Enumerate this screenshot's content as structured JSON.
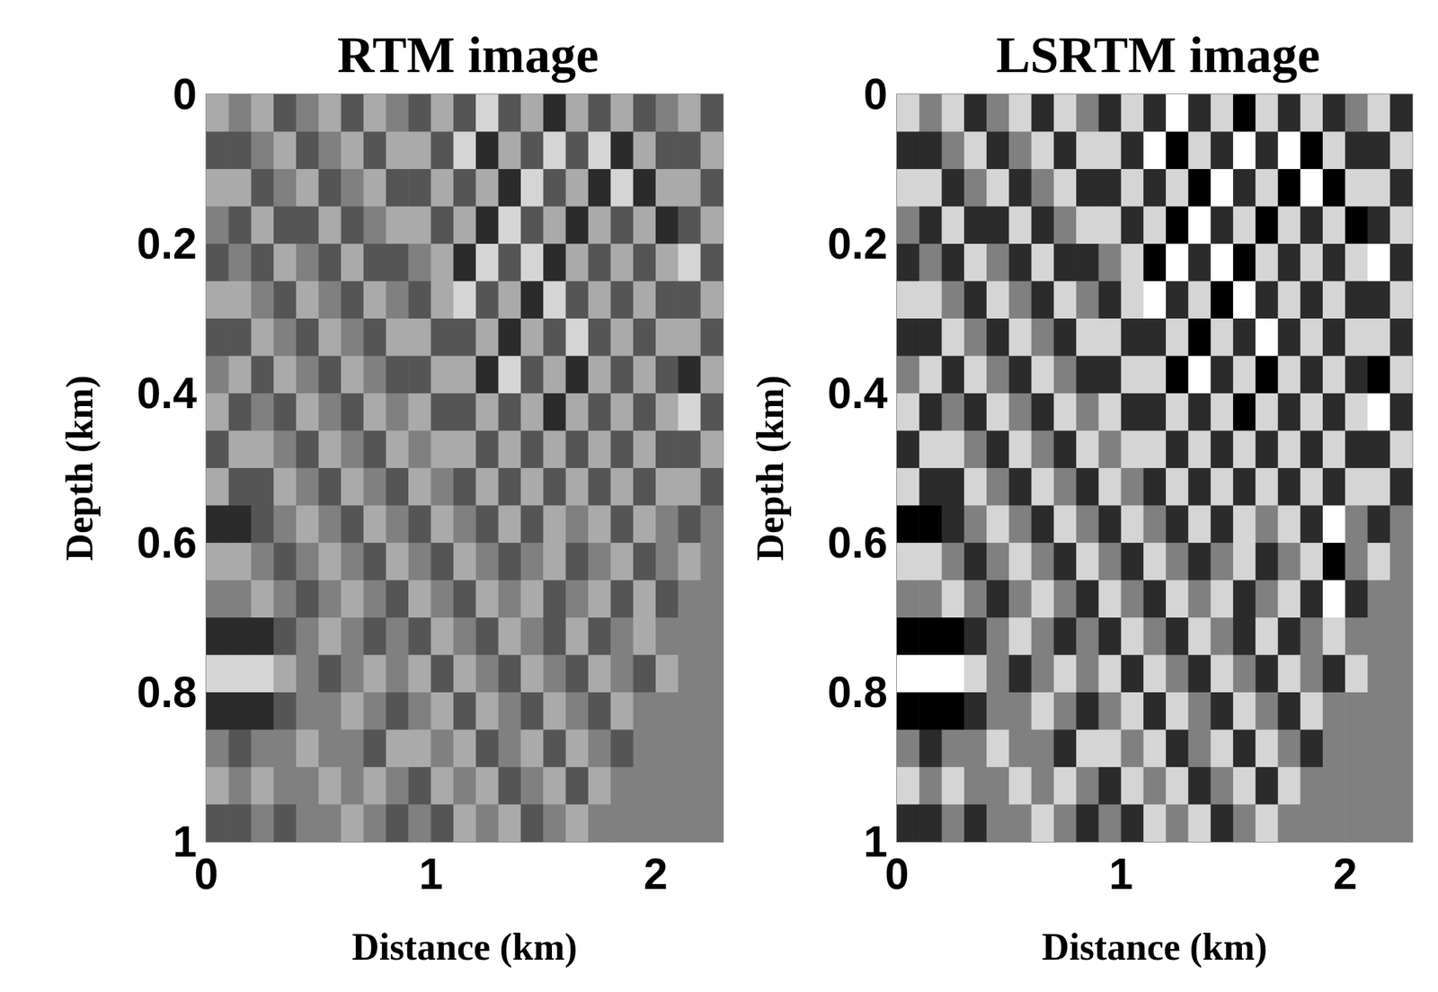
{
  "chart_data": [
    {
      "type": "heatmap",
      "title": "RTM image",
      "x_label": "Distance (km)",
      "y_label": "Depth (km)",
      "xlim": [
        0,
        2.3
      ],
      "xticks": [
        0,
        1,
        2
      ],
      "ylim": [
        0,
        1
      ],
      "yticks": [
        0,
        0.2,
        0.4,
        0.6,
        0.8,
        1
      ],
      "color_range": [
        -3,
        3
      ],
      "x": [
        0.05,
        0.15,
        0.25,
        0.35,
        0.45,
        0.55,
        0.65,
        0.75,
        0.85,
        0.95,
        1.05,
        1.15,
        1.25,
        1.35,
        1.45,
        1.55,
        1.65,
        1.75,
        1.85,
        1.95,
        2.05,
        2.15,
        2.25
      ],
      "y": [
        0.025,
        0.075,
        0.125,
        0.175,
        0.225,
        0.275,
        0.325,
        0.375,
        0.425,
        0.475,
        0.525,
        0.575,
        0.625,
        0.675,
        0.725,
        0.775,
        0.825,
        0.875,
        0.925,
        0.975
      ],
      "cells": [
        [
          1,
          0,
          1,
          -1,
          0,
          1,
          -1,
          1,
          0,
          -1,
          1,
          -1,
          2,
          -1,
          1,
          -2,
          1,
          -1,
          1,
          -1,
          0,
          1,
          -1
        ],
        [
          -1,
          -1,
          0,
          1,
          -1,
          0,
          1,
          -1,
          1,
          1,
          -1,
          2,
          -2,
          1,
          -1,
          2,
          -1,
          2,
          -2,
          1,
          -1,
          -1,
          1
        ],
        [
          1,
          1,
          -1,
          0,
          1,
          -1,
          0,
          1,
          -1,
          -1,
          1,
          -1,
          1,
          -2,
          2,
          -1,
          1,
          -2,
          2,
          -2,
          1,
          1,
          -1
        ],
        [
          0,
          -1,
          1,
          -1,
          -1,
          1,
          -1,
          0,
          1,
          1,
          -1,
          1,
          -2,
          2,
          -1,
          1,
          -2,
          1,
          -1,
          1,
          -2,
          -1,
          1
        ],
        [
          -1,
          0,
          -1,
          1,
          0,
          -1,
          1,
          -1,
          -1,
          0,
          1,
          -2,
          2,
          -1,
          2,
          -2,
          1,
          -1,
          1,
          -1,
          1,
          2,
          -1
        ],
        [
          1,
          1,
          0,
          -1,
          1,
          0,
          -1,
          1,
          0,
          -1,
          1,
          2,
          -1,
          1,
          -2,
          2,
          -1,
          1,
          -1,
          1,
          -1,
          -1,
          1
        ],
        [
          -1,
          -1,
          1,
          0,
          -1,
          1,
          0,
          -1,
          1,
          1,
          -1,
          -1,
          1,
          -2,
          1,
          -1,
          2,
          -1,
          1,
          -1,
          1,
          1,
          -1
        ],
        [
          0,
          1,
          -1,
          1,
          0,
          -1,
          1,
          0,
          -1,
          -1,
          1,
          1,
          -2,
          2,
          -1,
          1,
          -2,
          1,
          -1,
          1,
          -1,
          -2,
          1
        ],
        [
          1,
          -1,
          0,
          -1,
          1,
          0,
          -1,
          1,
          0,
          1,
          -1,
          -1,
          1,
          -1,
          1,
          -2,
          1,
          -1,
          1,
          -1,
          1,
          2,
          -1
        ],
        [
          -1,
          1,
          1,
          0,
          -1,
          1,
          0,
          -1,
          1,
          0,
          1,
          1,
          -1,
          1,
          -1,
          1,
          -1,
          1,
          -1,
          1,
          -1,
          -1,
          1
        ],
        [
          1,
          -1,
          -1,
          1,
          0,
          -1,
          1,
          0,
          -1,
          1,
          0,
          -1,
          1,
          -1,
          1,
          -1,
          1,
          -1,
          1,
          -1,
          1,
          1,
          -1
        ],
        [
          -2,
          -2,
          -1,
          0,
          1,
          0,
          -1,
          1,
          0,
          -1,
          1,
          0,
          -1,
          1,
          -1,
          1,
          0,
          1,
          -1,
          1,
          0,
          -1,
          0
        ],
        [
          1,
          1,
          0,
          -1,
          0,
          1,
          0,
          -1,
          1,
          0,
          -1,
          1,
          0,
          -1,
          0,
          1,
          -1,
          0,
          1,
          -1,
          0,
          1,
          0
        ],
        [
          0,
          0,
          1,
          0,
          -1,
          0,
          1,
          0,
          -1,
          1,
          0,
          -1,
          1,
          0,
          1,
          -1,
          0,
          1,
          -1,
          1,
          -1,
          0,
          0
        ],
        [
          -2,
          -2,
          -2,
          -1,
          0,
          1,
          0,
          -1,
          0,
          -1,
          1,
          0,
          -1,
          1,
          0,
          -1,
          1,
          -1,
          0,
          1,
          0,
          0,
          0
        ],
        [
          2,
          2,
          2,
          1,
          0,
          -1,
          0,
          1,
          0,
          1,
          -1,
          1,
          0,
          -1,
          1,
          0,
          -1,
          1,
          0,
          -1,
          1,
          0,
          0
        ],
        [
          -2,
          -2,
          -2,
          -1,
          0,
          0,
          1,
          0,
          -1,
          0,
          1,
          -1,
          1,
          0,
          -1,
          1,
          0,
          -1,
          1,
          0,
          0,
          0,
          0
        ],
        [
          0,
          -1,
          0,
          0,
          1,
          0,
          0,
          -1,
          1,
          1,
          0,
          1,
          -1,
          0,
          1,
          -1,
          1,
          0,
          -1,
          0,
          0,
          0,
          0
        ],
        [
          1,
          0,
          1,
          0,
          0,
          1,
          0,
          1,
          0,
          -1,
          1,
          0,
          1,
          -1,
          0,
          1,
          -1,
          1,
          0,
          0,
          0,
          0,
          0
        ],
        [
          -1,
          -1,
          0,
          -1,
          0,
          0,
          1,
          0,
          -1,
          0,
          -1,
          1,
          0,
          1,
          -1,
          0,
          1,
          0,
          0,
          0,
          0,
          0,
          0
        ]
      ]
    },
    {
      "type": "heatmap",
      "title": "LSRTM image",
      "x_label": "Distance (km)",
      "y_label": "Depth (km)",
      "xlim": [
        0,
        2.3
      ],
      "xticks": [
        0,
        1,
        2
      ],
      "ylim": [
        0,
        1
      ],
      "yticks": [
        0,
        0.2,
        0.4,
        0.6,
        0.8,
        1
      ],
      "color_range": [
        -3,
        3
      ],
      "x": [
        0.05,
        0.15,
        0.25,
        0.35,
        0.45,
        0.55,
        0.65,
        0.75,
        0.85,
        0.95,
        1.05,
        1.15,
        1.25,
        1.35,
        1.45,
        1.55,
        1.65,
        1.75,
        1.85,
        1.95,
        2.05,
        2.15,
        2.25
      ],
      "y": [
        0.025,
        0.075,
        0.125,
        0.175,
        0.225,
        0.275,
        0.325,
        0.375,
        0.425,
        0.475,
        0.525,
        0.575,
        0.625,
        0.675,
        0.725,
        0.775,
        0.825,
        0.875,
        0.925,
        0.975
      ],
      "cells": [
        [
          2,
          0,
          2,
          -2,
          0,
          2,
          -2,
          2,
          0,
          -2,
          2,
          -2,
          3,
          -2,
          2,
          -3,
          2,
          -2,
          2,
          -2,
          0,
          2,
          -2
        ],
        [
          -2,
          -2,
          0,
          2,
          -2,
          0,
          2,
          -2,
          2,
          2,
          -2,
          3,
          -3,
          2,
          -2,
          3,
          -2,
          3,
          -3,
          2,
          -2,
          -2,
          2
        ],
        [
          2,
          2,
          -2,
          0,
          2,
          -2,
          0,
          2,
          -2,
          -2,
          2,
          -2,
          2,
          -3,
          3,
          -2,
          2,
          -3,
          3,
          -3,
          2,
          2,
          -2
        ],
        [
          0,
          -2,
          2,
          -2,
          -2,
          2,
          -2,
          0,
          2,
          2,
          -2,
          2,
          -3,
          3,
          -2,
          2,
          -3,
          2,
          -2,
          2,
          -3,
          -2,
          2
        ],
        [
          -2,
          0,
          -2,
          2,
          0,
          -2,
          2,
          -2,
          -2,
          0,
          2,
          -3,
          3,
          -2,
          3,
          -3,
          2,
          -2,
          2,
          -2,
          2,
          3,
          -2
        ],
        [
          2,
          2,
          0,
          -2,
          2,
          0,
          -2,
          2,
          0,
          -2,
          2,
          3,
          -2,
          2,
          -3,
          3,
          -2,
          2,
          -2,
          2,
          -2,
          -2,
          2
        ],
        [
          -2,
          -2,
          2,
          0,
          -2,
          2,
          0,
          -2,
          2,
          2,
          -2,
          -2,
          2,
          -3,
          2,
          -2,
          3,
          -2,
          2,
          -2,
          2,
          2,
          -2
        ],
        [
          0,
          2,
          -2,
          2,
          0,
          -2,
          2,
          0,
          -2,
          -2,
          2,
          2,
          -3,
          3,
          -2,
          2,
          -3,
          2,
          -2,
          2,
          -2,
          -3,
          2
        ],
        [
          2,
          -2,
          0,
          -2,
          2,
          0,
          -2,
          2,
          0,
          2,
          -2,
          -2,
          2,
          -2,
          2,
          -3,
          2,
          -2,
          2,
          -2,
          2,
          3,
          -2
        ],
        [
          -2,
          2,
          2,
          0,
          -2,
          2,
          0,
          -2,
          2,
          0,
          2,
          2,
          -2,
          2,
          -2,
          2,
          -2,
          2,
          -2,
          2,
          -2,
          -2,
          2
        ],
        [
          2,
          -2,
          -2,
          2,
          0,
          -2,
          2,
          0,
          -2,
          2,
          0,
          -2,
          2,
          -2,
          2,
          -2,
          2,
          -2,
          2,
          -2,
          2,
          2,
          -2
        ],
        [
          -3,
          -3,
          -2,
          0,
          2,
          0,
          -2,
          2,
          0,
          -2,
          2,
          0,
          -2,
          2,
          -2,
          2,
          0,
          2,
          -2,
          3,
          0,
          -2,
          0
        ],
        [
          2,
          2,
          0,
          -2,
          0,
          2,
          0,
          -2,
          2,
          0,
          -2,
          2,
          0,
          -2,
          0,
          2,
          -2,
          0,
          2,
          -3,
          0,
          2,
          0
        ],
        [
          0,
          0,
          2,
          0,
          -2,
          0,
          2,
          0,
          -2,
          2,
          0,
          -2,
          2,
          0,
          2,
          -2,
          0,
          2,
          -2,
          3,
          -2,
          0,
          0
        ],
        [
          -3,
          -3,
          -3,
          -2,
          0,
          2,
          0,
          -2,
          0,
          -2,
          2,
          0,
          -2,
          2,
          0,
          -2,
          2,
          -2,
          0,
          2,
          0,
          0,
          0
        ],
        [
          3,
          3,
          3,
          2,
          0,
          -2,
          0,
          2,
          0,
          2,
          -2,
          2,
          0,
          -2,
          2,
          0,
          -2,
          2,
          0,
          -2,
          2,
          0,
          0
        ],
        [
          -3,
          -3,
          -3,
          -2,
          0,
          0,
          2,
          0,
          -2,
          0,
          2,
          -2,
          2,
          0,
          -2,
          2,
          0,
          -2,
          2,
          0,
          0,
          0,
          0
        ],
        [
          0,
          -2,
          0,
          0,
          2,
          0,
          0,
          -2,
          2,
          2,
          0,
          2,
          -2,
          0,
          2,
          -2,
          2,
          0,
          -2,
          0,
          0,
          0,
          0
        ],
        [
          2,
          0,
          2,
          0,
          0,
          2,
          0,
          2,
          0,
          -2,
          2,
          0,
          2,
          -2,
          0,
          2,
          -2,
          2,
          0,
          0,
          0,
          0,
          0
        ],
        [
          -2,
          -2,
          0,
          -2,
          0,
          0,
          2,
          0,
          -2,
          0,
          -2,
          2,
          0,
          2,
          -2,
          0,
          2,
          0,
          0,
          0,
          0,
          0,
          0
        ]
      ]
    }
  ]
}
